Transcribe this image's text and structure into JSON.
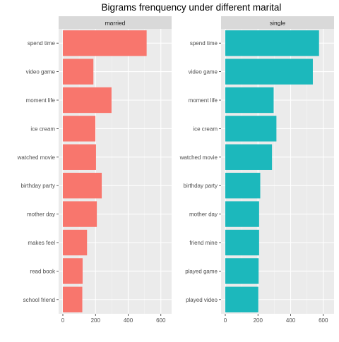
{
  "chart_data": {
    "type": "bar",
    "orientation": "horizontal",
    "title": "Bigrams frenquency under different marital",
    "xlabel": "",
    "ylabel": "",
    "xlim": [
      0,
      640
    ],
    "x_ticks": [
      0,
      200,
      400,
      600
    ],
    "grid": true,
    "facets": [
      {
        "name": "married",
        "color": "#F8766D",
        "categories": [
          "spend time",
          "video game",
          "moment life",
          "ice cream",
          "watched movie",
          "birthday party",
          "mother day",
          "makes feel",
          "read book",
          "school friend"
        ],
        "values": [
          513,
          187,
          298,
          199,
          203,
          238,
          208,
          148,
          121,
          119
        ]
      },
      {
        "name": "single",
        "color": "#1CB8BC",
        "categories": [
          "spend time",
          "video game",
          "moment life",
          "ice cream",
          "watched movie",
          "birthday party",
          "mother day",
          "friend mine",
          "played game",
          "played video"
        ],
        "values": [
          574,
          536,
          296,
          313,
          286,
          214,
          207,
          207,
          204,
          202
        ]
      }
    ]
  }
}
